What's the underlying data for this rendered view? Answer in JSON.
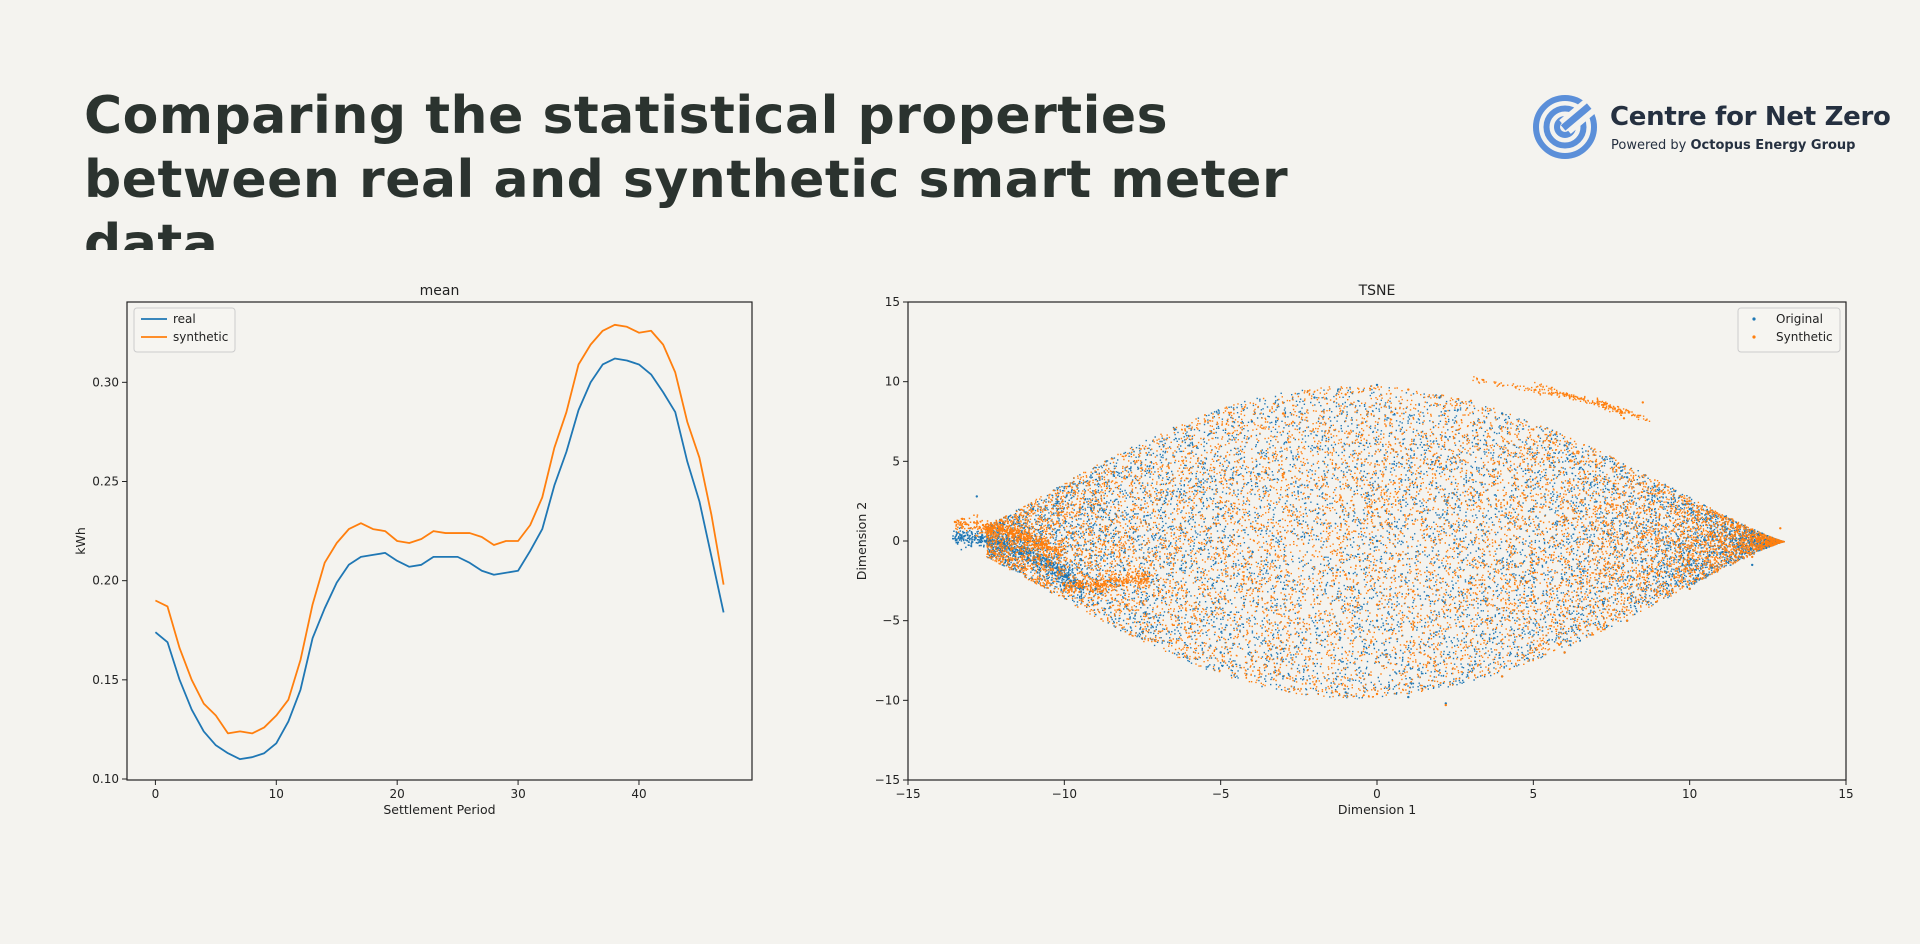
{
  "header": {
    "title_line1": "Comparing the statistical properties",
    "title_line2": "between real and synthetic smart meter data"
  },
  "logo": {
    "name": "Centre for Net Zero",
    "tagline_prefix": "Powered by",
    "tagline_brand": "Octopus Energy Group",
    "icon": "target-rings-icon",
    "color": "#5b8fd9"
  },
  "chart_data": [
    {
      "type": "line",
      "title": "mean",
      "xlabel": "Settlement Period",
      "ylabel": "kWh",
      "xlim": [
        -2.35,
        49.35
      ],
      "ylim": [
        0.0995,
        0.3405
      ],
      "xticks": [
        0,
        10,
        20,
        30,
        40
      ],
      "yticks": [
        0.1,
        0.15,
        0.2,
        0.25,
        0.3
      ],
      "ytick_labels": [
        "0.10",
        "0.15",
        "0.20",
        "0.25",
        "0.30"
      ],
      "legend_position": "top-left",
      "grid": false,
      "x": [
        0,
        1,
        2,
        3,
        4,
        5,
        6,
        7,
        8,
        9,
        10,
        11,
        12,
        13,
        14,
        15,
        16,
        17,
        18,
        19,
        20,
        21,
        22,
        23,
        24,
        25,
        26,
        27,
        28,
        29,
        30,
        31,
        32,
        33,
        34,
        35,
        36,
        37,
        38,
        39,
        40,
        41,
        42,
        43,
        44,
        45,
        46,
        47
      ],
      "series": [
        {
          "name": "real",
          "color": "#1f77b4",
          "values": [
            0.174,
            0.169,
            0.15,
            0.135,
            0.124,
            0.117,
            0.113,
            0.11,
            0.111,
            0.113,
            0.118,
            0.129,
            0.145,
            0.171,
            0.186,
            0.199,
            0.208,
            0.212,
            0.213,
            0.214,
            0.21,
            0.207,
            0.208,
            0.212,
            0.212,
            0.212,
            0.209,
            0.205,
            0.203,
            0.204,
            0.205,
            0.215,
            0.226,
            0.248,
            0.265,
            0.286,
            0.3,
            0.309,
            0.312,
            0.311,
            0.309,
            0.304,
            0.295,
            0.285,
            0.26,
            0.24,
            0.212,
            0.184
          ]
        },
        {
          "name": "synthetic",
          "color": "#ff7f0e",
          "values": [
            0.19,
            0.187,
            0.166,
            0.15,
            0.138,
            0.132,
            0.123,
            0.124,
            0.123,
            0.126,
            0.132,
            0.14,
            0.16,
            0.188,
            0.209,
            0.219,
            0.226,
            0.229,
            0.226,
            0.225,
            0.22,
            0.219,
            0.221,
            0.225,
            0.224,
            0.224,
            0.224,
            0.222,
            0.218,
            0.22,
            0.22,
            0.228,
            0.242,
            0.267,
            0.285,
            0.309,
            0.319,
            0.326,
            0.329,
            0.328,
            0.325,
            0.326,
            0.319,
            0.305,
            0.28,
            0.262,
            0.233,
            0.198
          ]
        }
      ]
    },
    {
      "type": "scatter",
      "title": "TSNE",
      "xlabel": "Dimension 1",
      "ylabel": "Dimension 2",
      "xlim": [
        -15,
        15
      ],
      "ylim": [
        -15,
        15
      ],
      "xticks": [
        -15,
        -10,
        -5,
        0,
        5,
        10,
        15
      ],
      "yticks": [
        -15,
        -10,
        -5,
        0,
        5,
        10,
        15
      ],
      "xtick_labels": [
        "−15",
        "−10",
        "−5",
        "0",
        "5",
        "10",
        "15"
      ],
      "ytick_labels": [
        "−15",
        "−10",
        "−5",
        "0",
        "5",
        "10",
        "15"
      ],
      "legend_position": "top-right",
      "grid": false,
      "series": [
        {
          "name": "Original",
          "color": "#1f77b4",
          "values": [
            [
              -13.2,
              0.3
            ],
            [
              -12.5,
              0.0
            ],
            [
              -11.6,
              -0.7
            ],
            [
              -10.8,
              -1.8
            ],
            [
              -10.0,
              -2.8
            ],
            [
              -12.8,
              2.8
            ],
            [
              -11,
              2
            ],
            [
              -8,
              4
            ],
            [
              -6,
              6
            ],
            [
              -4,
              7.5
            ],
            [
              -2,
              9
            ],
            [
              0,
              9.8
            ],
            [
              2,
              9
            ],
            [
              4,
              8
            ],
            [
              6,
              6
            ],
            [
              8,
              4
            ],
            [
              10,
              2
            ],
            [
              12,
              0.6
            ],
            [
              -9,
              -3
            ],
            [
              -7,
              -5
            ],
            [
              -5,
              -7
            ],
            [
              -3,
              -8.5
            ],
            [
              -1,
              -9.5
            ],
            [
              1,
              -9.8
            ],
            [
              2.2,
              -10.2
            ],
            [
              4,
              -8.5
            ],
            [
              6,
              -7
            ],
            [
              8,
              -5
            ],
            [
              10,
              -3
            ],
            [
              12,
              -1.5
            ],
            [
              -5,
              2
            ],
            [
              0,
              0
            ],
            [
              5,
              2
            ],
            [
              3,
              -3
            ],
            [
              -3,
              -3
            ],
            [
              0,
              5
            ],
            [
              0,
              -5
            ]
          ]
        },
        {
          "name": "Synthetic",
          "color": "#ff7f0e",
          "values": [
            [
              -13.5,
              1.2
            ],
            [
              -12.6,
              1.0
            ],
            [
              -11.5,
              0.5
            ],
            [
              -10.5,
              -1.3
            ],
            [
              -9.5,
              -2.6
            ],
            [
              -8.5,
              -2.8
            ],
            [
              -7.5,
              -2.2
            ],
            [
              -9,
              3
            ],
            [
              -6,
              5.5
            ],
            [
              -3,
              8
            ],
            [
              -1,
              9.2
            ],
            [
              1,
              9.5
            ],
            [
              3,
              8.8
            ],
            [
              5,
              7
            ],
            [
              7,
              5
            ],
            [
              9,
              3
            ],
            [
              11,
              1.5
            ],
            [
              12.9,
              0.8
            ],
            [
              -8,
              -4
            ],
            [
              -6,
              -6
            ],
            [
              -4,
              -7.5
            ],
            [
              -2,
              -9
            ],
            [
              0,
              -9.6
            ],
            [
              2.2,
              -10.3
            ],
            [
              4,
              -8.5
            ],
            [
              6,
              -7
            ],
            [
              8,
              -5
            ],
            [
              10,
              -3
            ],
            [
              12,
              -1
            ],
            [
              -5,
              0
            ],
            [
              0,
              2
            ],
            [
              5,
              -2
            ],
            [
              3,
              3
            ],
            [
              -3,
              4
            ],
            [
              0,
              -4
            ],
            [
              6,
              1
            ],
            [
              7.9,
              7.7
            ],
            [
              3.4,
              10.1
            ],
            [
              8.5,
              8.7
            ]
          ]
        }
      ]
    }
  ]
}
